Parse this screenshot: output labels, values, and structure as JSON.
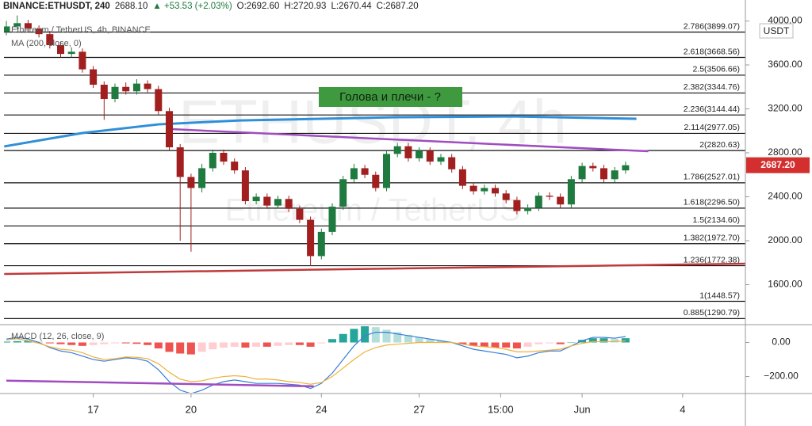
{
  "chart_data": {
    "type": "candlestick",
    "title": "BINANCE:ETHUSDT, 240",
    "last": "2688.10",
    "change": "▲ +53.53 (+2.03%)",
    "ohlc_text": [
      "O:2692.60",
      "H:2720.93",
      "L:2670.44",
      "C:2687.20"
    ],
    "legend_title": "Ethereum / TetherUS, 4h, BINANCE",
    "ma_label": "MA (200, close, 0)",
    "watermark": [
      "ETHUSDT, 4h",
      "Ethereum / TetherUS"
    ],
    "annotation": "Голова и плечи - ?",
    "currency": "USDT",
    "price_tag": {
      "value": 2687.2,
      "label": "2687.20"
    },
    "up_color": "#1f7a3f",
    "down_color": "#a11f1f",
    "xlim": [
      -0.44,
      136.06
    ],
    "xticks": [
      {
        "value": 16,
        "label": "17"
      },
      {
        "value": 34,
        "label": "20"
      },
      {
        "value": 58,
        "label": "24"
      },
      {
        "value": 76,
        "label": "27"
      },
      {
        "value": 91,
        "label": "15:00"
      },
      {
        "value": 106,
        "label": "Jun"
      },
      {
        "value": 124.5,
        "label": "4"
      }
    ],
    "ylim": [
      1236,
      4191
    ],
    "yticks": [
      {
        "value": 4000,
        "label": "4000.00"
      },
      {
        "value": 3600,
        "label": "3600.00"
      },
      {
        "value": 3200,
        "label": "3200.00"
      },
      {
        "value": 2800,
        "label": "2800.00"
      },
      {
        "value": 2400,
        "label": "2400.00"
      },
      {
        "value": 2000,
        "label": "2000.00"
      },
      {
        "value": 1600,
        "label": "1600.00"
      }
    ],
    "x": [
      0,
      2,
      4,
      6,
      8,
      10,
      12,
      14,
      16,
      18,
      20,
      22,
      24,
      26,
      28,
      30,
      32,
      34,
      36,
      38,
      40,
      42,
      44,
      46,
      48,
      50,
      52,
      54,
      56,
      58,
      60,
      62,
      64,
      66,
      68,
      70,
      72,
      74,
      76,
      78,
      80,
      82,
      84,
      86,
      88,
      90,
      92,
      94,
      96,
      98,
      100,
      102,
      104,
      106,
      108,
      110,
      112,
      114
    ],
    "open": [
      3900,
      3950,
      3980,
      3930,
      3880,
      3780,
      3700,
      3720,
      3560,
      3420,
      3290,
      3400,
      3360,
      3430,
      3380,
      3180,
      2850,
      2580,
      2480,
      2660,
      2800,
      2720,
      2640,
      2360,
      2400,
      2320,
      2380,
      2290,
      2190,
      1860,
      2080,
      2310,
      2560,
      2660,
      2600,
      2480,
      2790,
      2860,
      2750,
      2820,
      2720,
      2760,
      2650,
      2500,
      2450,
      2480,
      2430,
      2370,
      2270,
      2300,
      2410,
      2400,
      2330,
      2560,
      2680,
      2660,
      2560,
      2640
    ],
    "high": [
      4000,
      4050,
      4010,
      3960,
      3910,
      3810,
      3760,
      3750,
      3590,
      3450,
      3430,
      3440,
      3470,
      3460,
      3410,
      3210,
      2880,
      2610,
      2700,
      2830,
      2830,
      2750,
      2670,
      2430,
      2430,
      2410,
      2410,
      2320,
      2220,
      2110,
      2340,
      2590,
      2700,
      2690,
      2630,
      2820,
      2890,
      2890,
      2850,
      2850,
      2790,
      2790,
      2680,
      2530,
      2510,
      2510,
      2460,
      2400,
      2330,
      2440,
      2440,
      2430,
      2590,
      2710,
      2710,
      2690,
      2670,
      2720
    ],
    "low": [
      3870,
      3920,
      3900,
      3850,
      3750,
      3670,
      3670,
      3530,
      3390,
      3100,
      3260,
      3330,
      3330,
      3350,
      3150,
      2820,
      2000,
      1900,
      2440,
      2630,
      2690,
      2610,
      2330,
      2330,
      2290,
      2290,
      2260,
      2160,
      1770,
      1830,
      2050,
      2280,
      2530,
      2570,
      2450,
      2450,
      2760,
      2720,
      2720,
      2690,
      2690,
      2620,
      2470,
      2420,
      2420,
      2400,
      2340,
      2240,
      2240,
      2270,
      2370,
      2300,
      2300,
      2530,
      2630,
      2530,
      2530,
      2610
    ],
    "close": [
      3950,
      3980,
      3930,
      3880,
      3780,
      3700,
      3720,
      3560,
      3420,
      3290,
      3400,
      3360,
      3430,
      3380,
      3180,
      2850,
      2580,
      2480,
      2660,
      2800,
      2720,
      2640,
      2360,
      2400,
      2320,
      2380,
      2290,
      2190,
      1860,
      2080,
      2310,
      2560,
      2660,
      2600,
      2480,
      2790,
      2860,
      2750,
      2820,
      2720,
      2760,
      2650,
      2500,
      2450,
      2480,
      2430,
      2370,
      2270,
      2300,
      2410,
      2400,
      2330,
      2560,
      2680,
      2660,
      2560,
      2640,
      2687
    ],
    "ma": {
      "color": "#2f8fd8",
      "x": [
        -0.4,
        14,
        28,
        43,
        72,
        94,
        116
      ],
      "values": [
        2858,
        2980,
        3059,
        3095,
        3124,
        3131,
        3110
      ]
    },
    "trend_lines": [
      {
        "color": "#a04cc0",
        "x": [
          30.2,
          118.2
        ],
        "values": [
          3016,
          2814
        ]
      },
      {
        "color": "#c0393b",
        "x": [
          -0.4,
          136
        ],
        "values": [
          1697,
          1791
        ]
      }
    ],
    "levels": [
      {
        "value": 3899.07,
        "label": "2.786(3899.07)"
      },
      {
        "value": 3668.56,
        "label": "2.618(3668.56)"
      },
      {
        "value": 3506.66,
        "label": "2.5(3506.66)"
      },
      {
        "value": 3344.76,
        "label": "2.382(3344.76)"
      },
      {
        "value": 3144.44,
        "label": "2.236(3144.44)"
      },
      {
        "value": 2977.05,
        "label": "2.114(2977.05)"
      },
      {
        "value": 2820.63,
        "label": "2(2820.63)"
      },
      {
        "value": 2527.01,
        "label": "1.786(2527.01)"
      },
      {
        "value": 2296.5,
        "label": "1.618(2296.50)"
      },
      {
        "value": 2134.6,
        "label": "1.5(2134.60)"
      },
      {
        "value": 1972.7,
        "label": "1.382(1972.70)"
      },
      {
        "value": 1772.38,
        "label": "1.236(1772.38)"
      },
      {
        "value": 1448.57,
        "label": "1(1448.57)"
      },
      {
        "value": 1290.79,
        "label": "0.885(1290.79)"
      }
    ],
    "macd": {
      "label": "MACD (12, 26, close, 9)",
      "ylim": [
        -295,
        100
      ],
      "yticks": [
        {
          "value": 0,
          "label": "0.00"
        },
        {
          "value": -200,
          "label": "−200.00"
        }
      ],
      "hist_colors": [
        "#26a69a",
        "#b2dfdb",
        "#ef5350",
        "#ffcdd2"
      ],
      "macd_color": "#3b7dd8",
      "signal_color": "#f0b03a",
      "hist": [
        5,
        8,
        10,
        5,
        -5,
        -10,
        -15,
        -20,
        -15,
        -10,
        -5,
        -5,
        -8,
        -15,
        -35,
        -55,
        -65,
        -70,
        -55,
        -40,
        -30,
        -25,
        -30,
        -25,
        -25,
        -20,
        -15,
        -15,
        -25,
        -5,
        20,
        50,
        80,
        95,
        90,
        75,
        60,
        45,
        30,
        20,
        10,
        0,
        -10,
        -20,
        -25,
        -30,
        -30,
        -35,
        -25,
        -10,
        -5,
        -10,
        0,
        15,
        25,
        25,
        20,
        25
      ],
      "macd": [
        20,
        30,
        20,
        0,
        -30,
        -50,
        -60,
        -80,
        -100,
        -110,
        -100,
        -90,
        -95,
        -110,
        -160,
        -230,
        -280,
        -300,
        -280,
        -250,
        -230,
        -220,
        -230,
        -240,
        -240,
        -240,
        -245,
        -250,
        -270,
        -240,
        -180,
        -100,
        -20,
        40,
        60,
        60,
        50,
        40,
        30,
        20,
        10,
        0,
        -20,
        -40,
        -50,
        -60,
        -70,
        -90,
        -80,
        -60,
        -50,
        -50,
        -20,
        10,
        30,
        30,
        25,
        35
      ],
      "signal": [
        15,
        22,
        10,
        -5,
        -25,
        -40,
        -45,
        -60,
        -85,
        -100,
        -95,
        -85,
        -87,
        -95,
        -125,
        -175,
        -215,
        -230,
        -225,
        -210,
        -200,
        -195,
        -200,
        -215,
        -215,
        -220,
        -230,
        -235,
        -245,
        -235,
        -200,
        -150,
        -100,
        -55,
        -30,
        -15,
        -10,
        -5,
        0,
        0,
        0,
        0,
        -10,
        -20,
        -25,
        -30,
        -40,
        -55,
        -55,
        -50,
        -45,
        -40,
        -20,
        -5,
        5,
        5,
        5,
        10
      ],
      "trend": {
        "color": "#a04cc0",
        "x": [
          0,
          56.6
        ],
        "values": [
          -224,
          -257
        ]
      }
    }
  }
}
